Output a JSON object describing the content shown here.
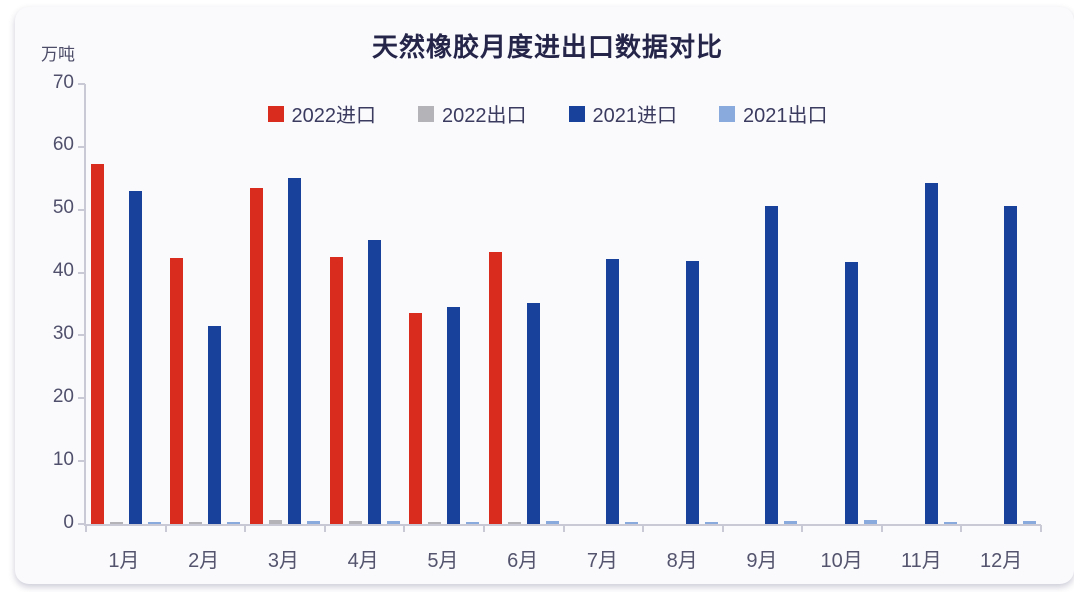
{
  "title": "天然橡胶月度进出口数据对比",
  "unit_label": "万吨",
  "colors": {
    "import_2022": "#d92c1e",
    "export_2022": "#b4b4b8",
    "import_2021": "#17419a",
    "export_2021": "#88aadc",
    "axis_line": "#c9c9d6",
    "title_text": "#25254a",
    "axis_text": "#50506c",
    "card_background": "#fafafd"
  },
  "chart_data": {
    "type": "bar",
    "title": "天然橡胶月度进出口数据对比",
    "ylabel": "万吨",
    "xlabel": "",
    "ylim": [
      0,
      70
    ],
    "yticks": [
      0,
      10,
      20,
      30,
      40,
      50,
      60,
      70
    ],
    "grid": false,
    "legend_position": "top",
    "categories": [
      "1月",
      "2月",
      "3月",
      "4月",
      "5月",
      "6月",
      "7月",
      "8月",
      "9月",
      "10月",
      "11月",
      "12月"
    ],
    "series": [
      {
        "name": "2022进口",
        "key": "2022-import",
        "color": "#d92c1e",
        "values": [
          57.3,
          42.3,
          53.4,
          42.5,
          33.6,
          43.2,
          null,
          null,
          null,
          null,
          null,
          null
        ]
      },
      {
        "name": "2022出口",
        "key": "2022-export",
        "color": "#b4b4b8",
        "values": [
          0.3,
          0.3,
          0.6,
          0.45,
          0.4,
          0.4,
          null,
          null,
          null,
          null,
          null,
          null
        ]
      },
      {
        "name": "2021进口",
        "key": "2021-import",
        "color": "#17419a",
        "values": [
          53.0,
          31.5,
          55.0,
          45.2,
          34.5,
          35.2,
          42.2,
          41.9,
          50.6,
          41.7,
          54.2,
          50.6
        ]
      },
      {
        "name": "2021出口",
        "key": "2021-export",
        "color": "#88aadc",
        "values": [
          0.3,
          0.25,
          0.5,
          0.45,
          0.35,
          0.5,
          0.3,
          0.35,
          0.5,
          0.7,
          0.4,
          0.5
        ]
      }
    ]
  }
}
